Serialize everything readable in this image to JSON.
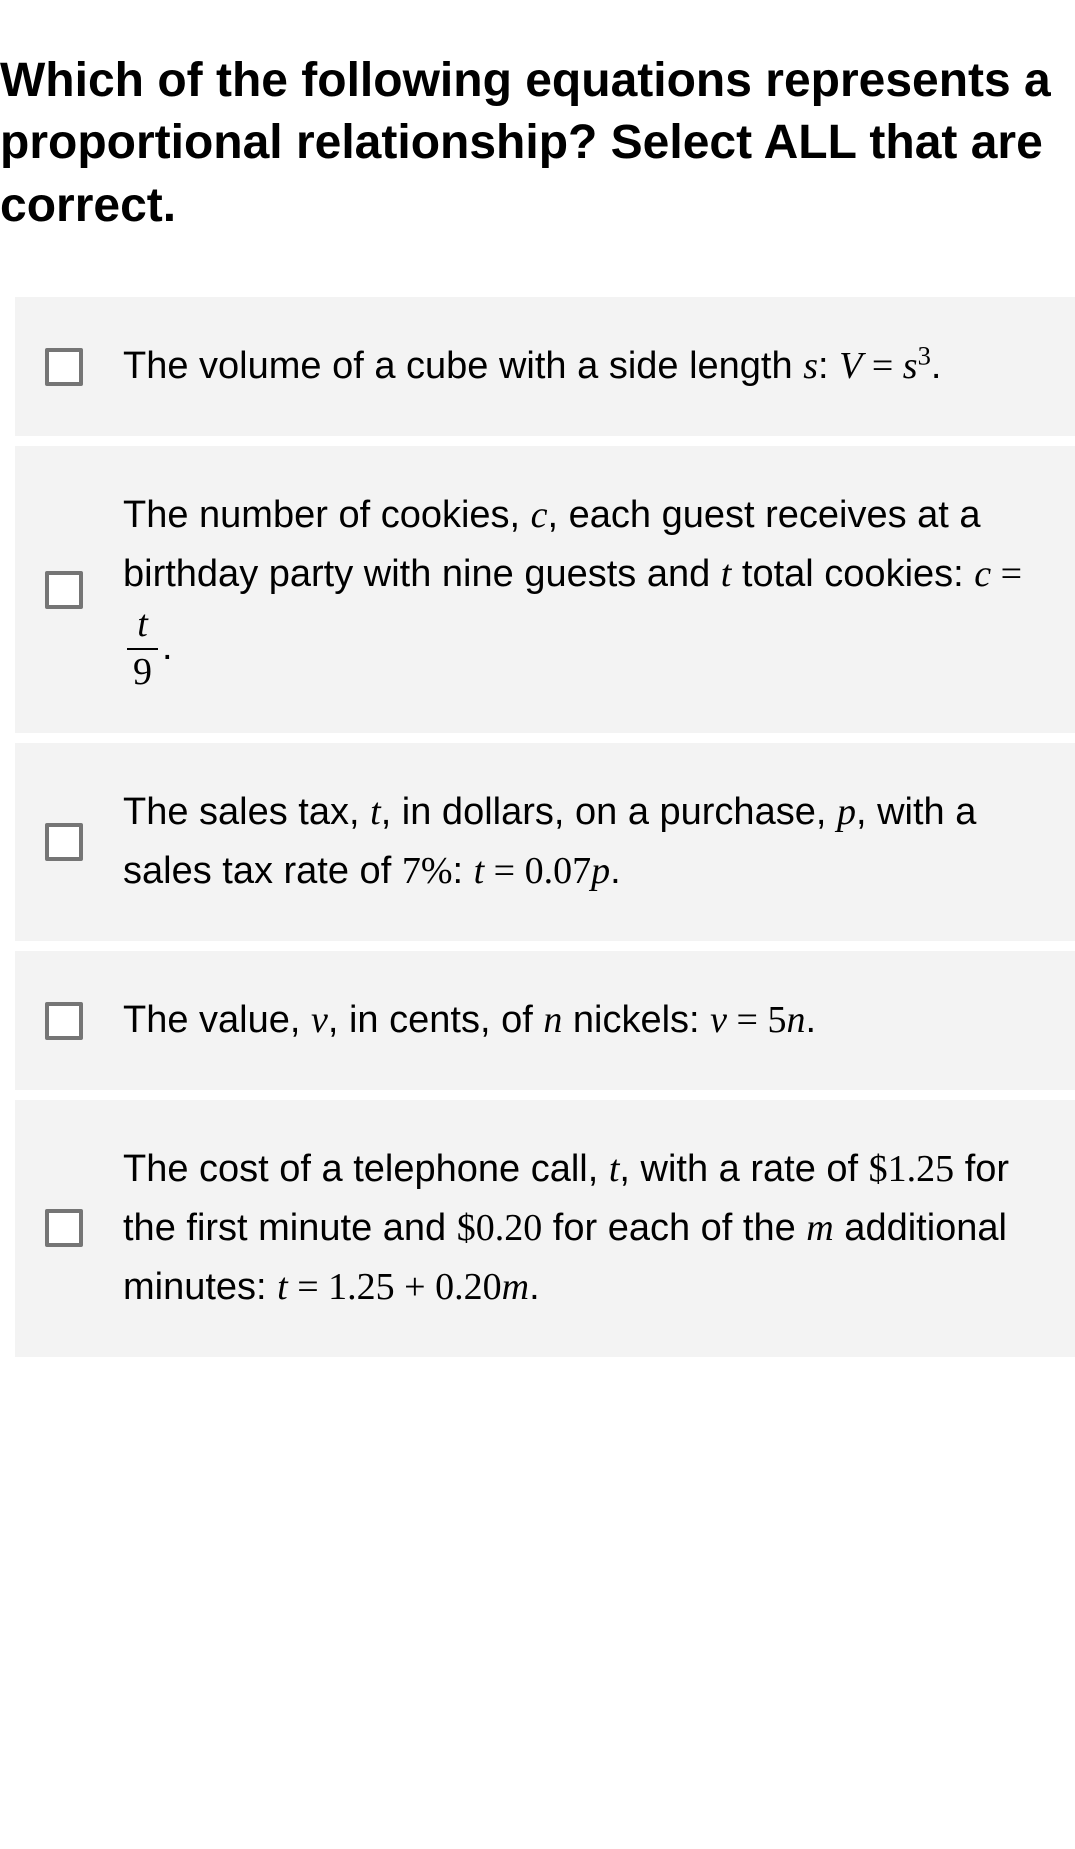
{
  "question": {
    "title": "Which of the following equations represents a proportional relationship? Select ALL that are correct."
  },
  "options": [
    {
      "pre": "The volume of a cube with a side length ",
      "var1": "s",
      "mid1": ": ",
      "eqL": "V",
      "eqEq": " = ",
      "eqR": "s",
      "exp": "3",
      "post": "."
    },
    {
      "pre": "The number of cookies, ",
      "var1": "c",
      "mid1": ", each guest receives at a birthday party with nine guests and ",
      "var2": "t",
      "mid2": " total cookies: ",
      "eqL": "c",
      "eqEq": " = ",
      "fracNum": "t",
      "fracDen": "9",
      "post": "."
    },
    {
      "pre": "The sales tax, ",
      "var1": "t",
      "mid1": ", in dollars, on a purchase, ",
      "var2": "p",
      "mid2": ", with a sales tax rate of ",
      "pct": "7%",
      "mid3": ": ",
      "eqL": "t",
      "eqEq": " = ",
      "coef": "0.07",
      "eqR": "p",
      "post": "."
    },
    {
      "pre": "The value, ",
      "var1": "v",
      "mid1": ", in cents, of ",
      "var2": "n",
      "mid2": " nickels: ",
      "eqL": "v",
      "eqEq": " = ",
      "coef": "5",
      "eqR": "n",
      "post": "."
    },
    {
      "pre": "The cost of a telephone call, ",
      "var1": "t",
      "mid1": ", with a rate of ",
      "amt1": "$1.25",
      "mid2": " for the first minute and ",
      "amt2": "$0.20",
      "mid3": " for each of the ",
      "var2": "m",
      "mid4": " additional minutes: ",
      "eqL": "t",
      "eqEq": " = ",
      "term1": "1.25",
      "plus": " + ",
      "coef": "0.20",
      "eqR": "m",
      "post": "."
    }
  ],
  "style": {
    "background_color": "#ffffff",
    "option_background": "#f3f3f3",
    "text_color": "#000000",
    "checkbox_border": "#757575",
    "title_fontsize": 48,
    "option_fontsize": 38
  }
}
